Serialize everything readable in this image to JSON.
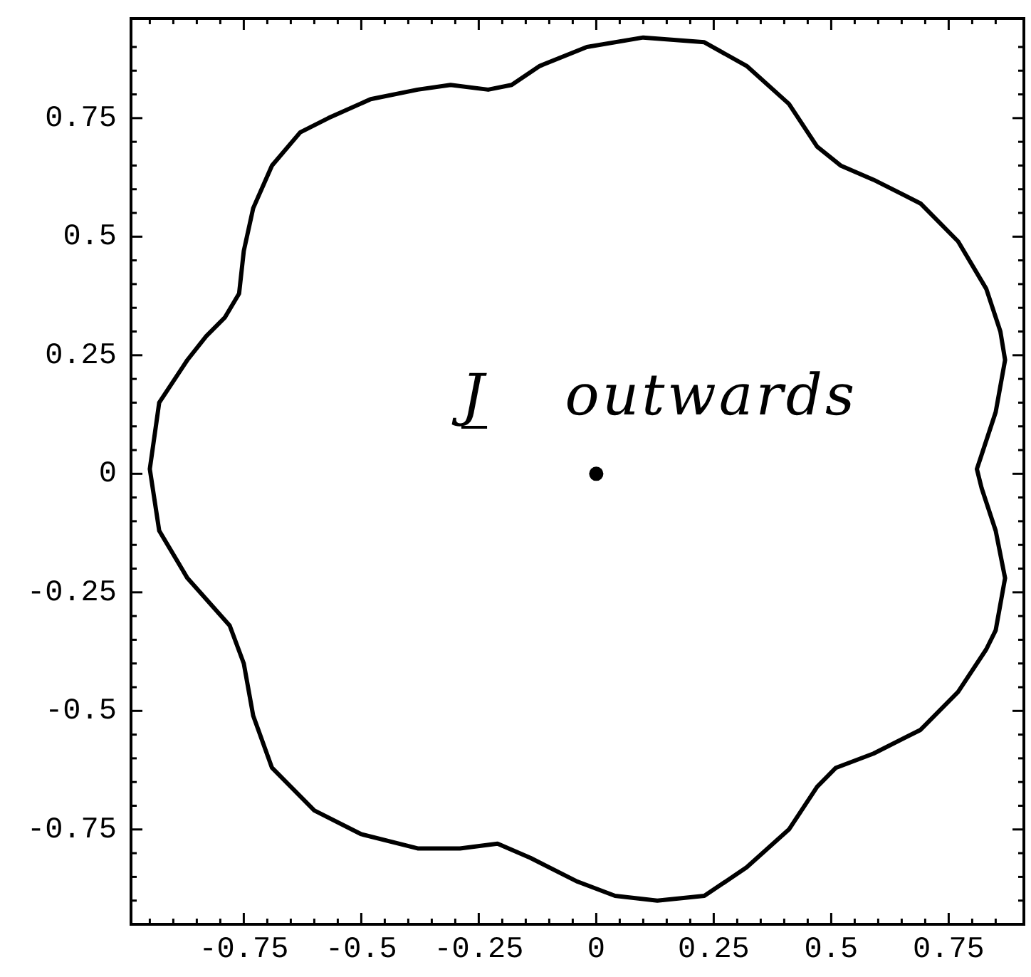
{
  "chart_data": {
    "type": "line",
    "xlim": [
      -0.99,
      0.91
    ],
    "ylim": [
      -0.95,
      0.96
    ],
    "xticks": [
      {
        "value": -0.95,
        "label": null
      },
      {
        "value": -0.9,
        "label": null
      },
      {
        "value": -0.85,
        "label": null
      },
      {
        "value": -0.8,
        "label": null
      },
      -0.75,
      {
        "value": -0.7,
        "label": null
      },
      {
        "value": -0.65,
        "label": null
      },
      {
        "value": -0.6,
        "label": null
      },
      {
        "value": -0.55,
        "label": null
      },
      -0.5,
      {
        "value": -0.45,
        "label": null
      },
      {
        "value": -0.4,
        "label": null
      },
      {
        "value": -0.35,
        "label": null
      },
      {
        "value": -0.3,
        "label": null
      },
      -0.25,
      {
        "value": -0.2,
        "label": null
      },
      {
        "value": -0.15,
        "label": null
      },
      {
        "value": -0.1,
        "label": null
      },
      {
        "value": -0.05,
        "label": null
      },
      0,
      {
        "value": 0.05,
        "label": null
      },
      {
        "value": 0.1,
        "label": null
      },
      {
        "value": 0.15,
        "label": null
      },
      {
        "value": 0.2,
        "label": null
      },
      0.25,
      {
        "value": 0.3,
        "label": null
      },
      {
        "value": 0.35,
        "label": null
      },
      {
        "value": 0.4,
        "label": null
      },
      {
        "value": 0.45,
        "label": null
      },
      0.5,
      {
        "value": 0.55,
        "label": null
      },
      {
        "value": 0.6,
        "label": null
      },
      {
        "value": 0.65,
        "label": null
      },
      {
        "value": 0.7,
        "label": null
      },
      0.75,
      {
        "value": 0.8,
        "label": null
      },
      {
        "value": 0.85,
        "label": null
      }
    ],
    "yticks": [
      {
        "value": -0.9,
        "label": null
      },
      {
        "value": -0.85,
        "label": null
      },
      {
        "value": -0.8,
        "label": null
      },
      -0.75,
      {
        "value": -0.7,
        "label": null
      },
      {
        "value": -0.65,
        "label": null
      },
      {
        "value": -0.6,
        "label": null
      },
      {
        "value": -0.55,
        "label": null
      },
      -0.5,
      {
        "value": -0.45,
        "label": null
      },
      {
        "value": -0.4,
        "label": null
      },
      {
        "value": -0.35,
        "label": null
      },
      {
        "value": -0.3,
        "label": null
      },
      -0.25,
      {
        "value": -0.2,
        "label": null
      },
      {
        "value": -0.15,
        "label": null
      },
      {
        "value": -0.1,
        "label": null
      },
      {
        "value": -0.05,
        "label": null
      },
      0,
      {
        "value": 0.05,
        "label": null
      },
      {
        "value": 0.1,
        "label": null
      },
      {
        "value": 0.15,
        "label": null
      },
      {
        "value": 0.2,
        "label": null
      },
      0.25,
      {
        "value": 0.3,
        "label": null
      },
      {
        "value": 0.35,
        "label": null
      },
      {
        "value": 0.4,
        "label": null
      },
      {
        "value": 0.45,
        "label": null
      },
      0.5,
      {
        "value": 0.55,
        "label": null
      },
      {
        "value": 0.6,
        "label": null
      },
      {
        "value": 0.65,
        "label": null
      },
      {
        "value": 0.7,
        "label": null
      },
      0.75,
      {
        "value": 0.8,
        "label": null
      },
      {
        "value": 0.85,
        "label": null
      },
      {
        "value": 0.9,
        "label": null
      }
    ],
    "series": [
      {
        "type": "line",
        "color": "#000000",
        "x": [
          -0.95,
          -0.93,
          -0.87,
          -0.83,
          -0.79,
          -0.76,
          -0.75,
          -0.73,
          -0.69,
          -0.63,
          -0.57,
          -0.48,
          -0.38,
          -0.31,
          -0.23,
          -0.18,
          -0.12,
          -0.02,
          0.1,
          0.23,
          0.32,
          0.41,
          0.47,
          0.52,
          0.59,
          0.69,
          0.77,
          0.83,
          0.86,
          0.87,
          null,
          0.81,
          0.82,
          0.85,
          0.87,
          null,
          0.81,
          0.82,
          0.85,
          0.87,
          null,
          -0.95,
          -0.93,
          -0.87,
          -0.78,
          -0.75,
          -0.73,
          -0.69,
          -0.6,
          -0.5,
          -0.38,
          -0.29,
          -0.21,
          -0.14,
          -0.04,
          0.04,
          0.13,
          0.23,
          0.32,
          0.41,
          0.47,
          0.51,
          0.59,
          0.69,
          0.77,
          0.83,
          0.85,
          0.87
        ],
        "values": [
          0.01,
          0.15,
          0.24,
          0.29,
          0.33,
          0.38,
          0.47,
          0.56,
          0.65,
          0.72,
          0.75,
          0.79,
          0.81,
          0.82,
          0.81,
          0.82,
          0.86,
          0.9,
          0.92,
          0.91,
          0.86,
          0.78,
          0.69,
          0.65,
          0.62,
          0.57,
          0.49,
          0.39,
          0.3,
          0.24,
          null,
          0.01,
          0.04,
          0.13,
          0.24,
          null,
          0.01,
          -0.03,
          -0.12,
          -0.22,
          null,
          0.01,
          -0.12,
          -0.22,
          -0.32,
          -0.4,
          -0.51,
          -0.62,
          -0.71,
          -0.76,
          -0.79,
          -0.79,
          -0.78,
          -0.81,
          -0.86,
          -0.89,
          -0.9,
          -0.89,
          -0.83,
          -0.75,
          -0.66,
          -0.62,
          -0.59,
          -0.54,
          -0.46,
          -0.37,
          -0.33,
          -0.22
        ]
      },
      {
        "type": "scatter",
        "color": "#000000",
        "marker": "circle",
        "x": [
          0
        ],
        "values": [
          0
        ]
      }
    ],
    "annotations": [
      "J outwards"
    ]
  }
}
